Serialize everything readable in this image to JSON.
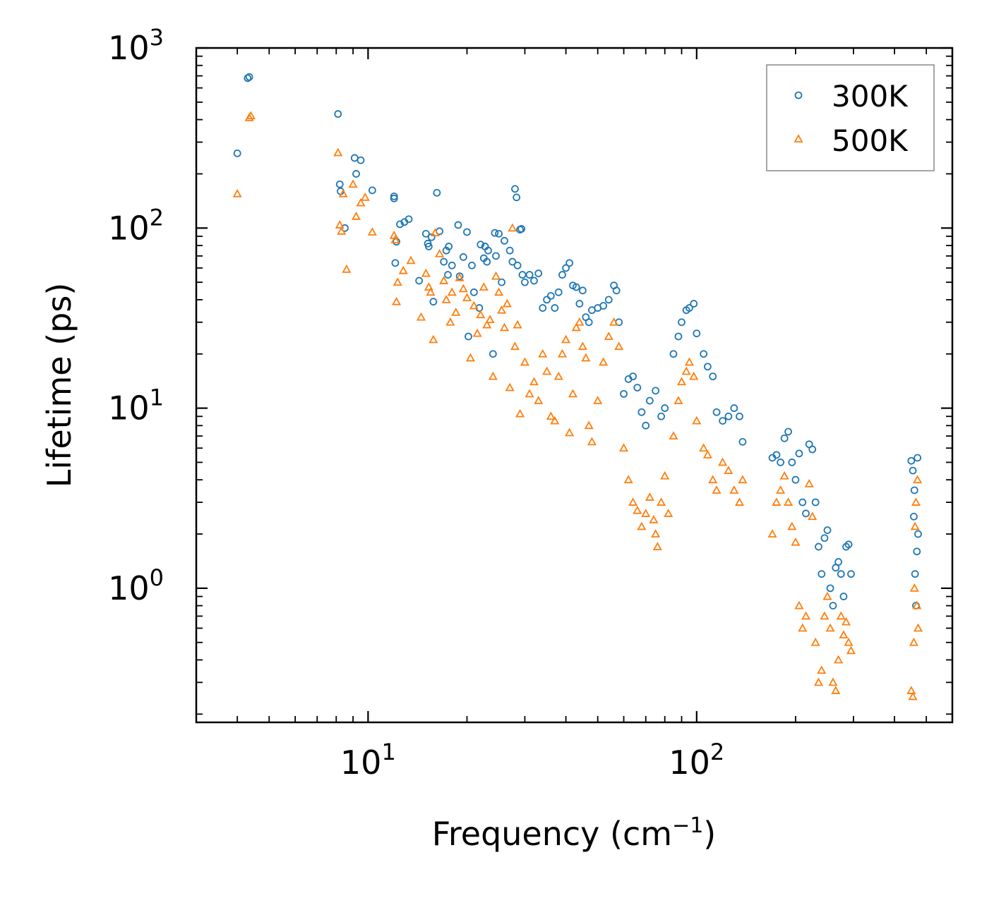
{
  "chart_data": {
    "type": "scatter",
    "title": "",
    "xlabel": "Frequency (cm",
    "xlabel_sup": "−1",
    "xlabel_end": ")",
    "ylabel": "Lifetime (ps)",
    "xscale": "log",
    "yscale": "log",
    "xlim": [
      3.0,
      600.0
    ],
    "ylim": [
      0.18,
      1000
    ],
    "x_ticks": [
      {
        "base": "10",
        "exp": "1",
        "value": 10
      },
      {
        "base": "10",
        "exp": "2",
        "value": 100
      }
    ],
    "y_ticks": [
      {
        "base": "10",
        "exp": "0",
        "value": 1
      },
      {
        "base": "10",
        "exp": "1",
        "value": 10
      },
      {
        "base": "10",
        "exp": "2",
        "value": 100
      },
      {
        "base": "10",
        "exp": "3",
        "value": 1000
      }
    ],
    "legend": {
      "placement": "top-right"
    },
    "series": [
      {
        "name": "300K",
        "marker": "circle",
        "color": "#1f77b4",
        "points": [
          [
            4.0,
            260
          ],
          [
            4.3,
            680
          ],
          [
            4.35,
            690
          ],
          [
            8.1,
            430
          ],
          [
            8.2,
            175
          ],
          [
            8.25,
            160
          ],
          [
            8.5,
            100
          ],
          [
            9.1,
            245
          ],
          [
            9.2,
            200
          ],
          [
            9.5,
            238
          ],
          [
            10.3,
            162
          ],
          [
            12.0,
            150
          ],
          [
            12.0,
            146
          ],
          [
            12.1,
            64
          ],
          [
            12.2,
            84
          ],
          [
            12.5,
            105
          ],
          [
            12.9,
            108
          ],
          [
            13.3,
            112
          ],
          [
            14.3,
            51
          ],
          [
            15.0,
            93
          ],
          [
            15.2,
            82
          ],
          [
            15.3,
            79
          ],
          [
            15.6,
            89
          ],
          [
            15.8,
            39
          ],
          [
            16.2,
            157
          ],
          [
            16.5,
            96
          ],
          [
            17.0,
            65
          ],
          [
            17.3,
            75
          ],
          [
            17.5,
            55
          ],
          [
            17.6,
            79
          ],
          [
            18.0,
            62
          ],
          [
            18.8,
            104
          ],
          [
            19.0,
            54
          ],
          [
            19.5,
            69
          ],
          [
            20.0,
            95
          ],
          [
            20.2,
            25
          ],
          [
            20.7,
            62
          ],
          [
            21.0,
            44
          ],
          [
            21.8,
            36
          ],
          [
            22.0,
            81
          ],
          [
            22.5,
            68
          ],
          [
            22.7,
            79
          ],
          [
            23.0,
            65
          ],
          [
            23.2,
            75
          ],
          [
            24.0,
            20
          ],
          [
            24.3,
            94
          ],
          [
            24.5,
            70
          ],
          [
            25.0,
            93
          ],
          [
            25.5,
            50
          ],
          [
            26.0,
            85
          ],
          [
            27.0,
            75
          ],
          [
            27.5,
            65
          ],
          [
            28.0,
            165
          ],
          [
            28.3,
            148
          ],
          [
            28.5,
            62
          ],
          [
            29.0,
            98
          ],
          [
            29.3,
            99
          ],
          [
            29.5,
            55
          ],
          [
            30.0,
            50
          ],
          [
            31.0,
            55
          ],
          [
            32.0,
            51
          ],
          [
            33.0,
            56
          ],
          [
            34.0,
            36
          ],
          [
            35.0,
            40
          ],
          [
            36.0,
            42
          ],
          [
            37.0,
            36
          ],
          [
            38.0,
            44
          ],
          [
            39.0,
            55
          ],
          [
            40.0,
            60
          ],
          [
            41.0,
            64
          ],
          [
            42.0,
            48
          ],
          [
            43.0,
            47
          ],
          [
            44.0,
            38
          ],
          [
            45.0,
            45
          ],
          [
            46.0,
            32
          ],
          [
            47.0,
            30
          ],
          [
            48.0,
            35
          ],
          [
            50.0,
            36
          ],
          [
            52.0,
            37
          ],
          [
            54.0,
            40
          ],
          [
            56.0,
            48
          ],
          [
            57.0,
            45
          ],
          [
            58.0,
            30
          ],
          [
            60.0,
            12.0
          ],
          [
            62.0,
            14.5
          ],
          [
            64.0,
            15.0
          ],
          [
            66.0,
            13.0
          ],
          [
            68.0,
            9.5
          ],
          [
            70.0,
            8.0
          ],
          [
            72.0,
            11.0
          ],
          [
            75.0,
            12.5
          ],
          [
            78.0,
            9.0
          ],
          [
            80.0,
            10.0
          ],
          [
            85.0,
            20.0
          ],
          [
            88.0,
            25.0
          ],
          [
            90.0,
            30.0
          ],
          [
            93.0,
            35.0
          ],
          [
            95.0,
            36.0
          ],
          [
            98.0,
            38.0
          ],
          [
            100.0,
            26.0
          ],
          [
            105.0,
            20.0
          ],
          [
            108.0,
            17.0
          ],
          [
            112.0,
            15.0
          ],
          [
            115.0,
            9.5
          ],
          [
            120.0,
            8.5
          ],
          [
            125.0,
            9.0
          ],
          [
            130.0,
            10.0
          ],
          [
            135.0,
            9.0
          ],
          [
            138.0,
            6.5
          ],
          [
            170.0,
            5.3
          ],
          [
            175.0,
            5.5
          ],
          [
            180.0,
            5.0
          ],
          [
            185.0,
            6.8
          ],
          [
            190.0,
            7.4
          ],
          [
            195.0,
            5.0
          ],
          [
            200.0,
            4.0
          ],
          [
            205.0,
            5.6
          ],
          [
            210.0,
            3.0
          ],
          [
            215.0,
            2.6
          ],
          [
            220.0,
            6.3
          ],
          [
            225.0,
            5.9
          ],
          [
            230.0,
            3.0
          ],
          [
            235.0,
            1.7
          ],
          [
            240.0,
            1.2
          ],
          [
            245.0,
            1.9
          ],
          [
            250.0,
            2.1
          ],
          [
            255.0,
            1.0
          ],
          [
            260.0,
            0.8
          ],
          [
            265.0,
            1.3
          ],
          [
            270.0,
            1.4
          ],
          [
            275.0,
            1.2
          ],
          [
            280.0,
            0.9
          ],
          [
            285.0,
            1.7
          ],
          [
            290.0,
            1.75
          ],
          [
            295.0,
            1.2
          ],
          [
            450.0,
            5.1
          ],
          [
            455.0,
            4.5
          ],
          [
            458.0,
            2.5
          ],
          [
            460.0,
            3.5
          ],
          [
            462.0,
            1.2
          ],
          [
            465.0,
            0.8
          ],
          [
            468.0,
            1.6
          ],
          [
            470.0,
            5.3
          ],
          [
            472.0,
            2.0
          ]
        ]
      },
      {
        "name": "500K",
        "marker": "triangle",
        "color": "#ff7f0e",
        "points": [
          [
            4.0,
            155
          ],
          [
            4.35,
            410
          ],
          [
            4.4,
            420
          ],
          [
            8.1,
            262
          ],
          [
            8.2,
            104
          ],
          [
            8.3,
            96
          ],
          [
            8.4,
            155
          ],
          [
            8.6,
            59
          ],
          [
            9.0,
            175
          ],
          [
            9.2,
            116
          ],
          [
            9.5,
            138
          ],
          [
            9.8,
            148
          ],
          [
            10.3,
            95
          ],
          [
            12.0,
            91
          ],
          [
            12.1,
            86
          ],
          [
            12.2,
            39
          ],
          [
            12.3,
            50
          ],
          [
            12.8,
            58
          ],
          [
            13.5,
            66
          ],
          [
            14.5,
            32
          ],
          [
            15.0,
            56
          ],
          [
            15.3,
            47
          ],
          [
            15.5,
            44
          ],
          [
            15.8,
            24
          ],
          [
            16.0,
            94
          ],
          [
            16.5,
            72
          ],
          [
            17.0,
            51
          ],
          [
            17.3,
            40
          ],
          [
            17.8,
            30
          ],
          [
            18.0,
            44
          ],
          [
            18.5,
            34
          ],
          [
            19.0,
            53
          ],
          [
            19.5,
            46
          ],
          [
            20.0,
            41
          ],
          [
            20.5,
            19
          ],
          [
            21.0,
            37
          ],
          [
            21.5,
            26
          ],
          [
            22.0,
            33
          ],
          [
            22.5,
            47
          ],
          [
            23.0,
            29
          ],
          [
            23.5,
            31
          ],
          [
            24.0,
            15
          ],
          [
            24.5,
            54
          ],
          [
            25.0,
            44
          ],
          [
            25.5,
            35
          ],
          [
            26.0,
            28
          ],
          [
            26.5,
            38
          ],
          [
            27.0,
            13
          ],
          [
            27.5,
            100
          ],
          [
            28.0,
            22
          ],
          [
            28.5,
            29
          ],
          [
            29.0,
            9.3
          ],
          [
            30.0,
            18
          ],
          [
            31.0,
            12
          ],
          [
            32.0,
            14
          ],
          [
            33.0,
            11
          ],
          [
            34.0,
            20
          ],
          [
            35.0,
            16
          ],
          [
            36.0,
            9
          ],
          [
            37.0,
            8.5
          ],
          [
            38.0,
            15
          ],
          [
            39.0,
            20
          ],
          [
            40.0,
            24
          ],
          [
            41.0,
            7.3
          ],
          [
            42.0,
            12
          ],
          [
            43.0,
            28
          ],
          [
            44.0,
            30
          ],
          [
            45.0,
            22
          ],
          [
            46.0,
            19
          ],
          [
            47.0,
            8.0
          ],
          [
            48.0,
            6.5
          ],
          [
            50.0,
            11
          ],
          [
            52.0,
            18
          ],
          [
            54.0,
            25
          ],
          [
            56.0,
            30
          ],
          [
            58.0,
            22
          ],
          [
            60.0,
            6
          ],
          [
            62.0,
            4.0
          ],
          [
            64.0,
            3.0
          ],
          [
            66.0,
            2.7
          ],
          [
            68.0,
            2.2
          ],
          [
            70.0,
            2.6
          ],
          [
            72.0,
            3.2
          ],
          [
            74.0,
            2.4
          ],
          [
            75.0,
            2.0
          ],
          [
            76.0,
            1.7
          ],
          [
            78.0,
            3.0
          ],
          [
            80.0,
            4.2
          ],
          [
            82.0,
            2.6
          ],
          [
            85.0,
            7.0
          ],
          [
            88.0,
            11.0
          ],
          [
            90.0,
            14.0
          ],
          [
            93.0,
            16.0
          ],
          [
            95.0,
            18.0
          ],
          [
            98.0,
            15.0
          ],
          [
            100.0,
            8.5
          ],
          [
            105.0,
            6.0
          ],
          [
            108.0,
            5.5
          ],
          [
            112.0,
            4.0
          ],
          [
            115.0,
            3.5
          ],
          [
            120.0,
            5.0
          ],
          [
            125.0,
            4.5
          ],
          [
            130.0,
            3.5
          ],
          [
            135.0,
            3.0
          ],
          [
            138.0,
            4.0
          ],
          [
            170.0,
            2.0
          ],
          [
            175.0,
            3.0
          ],
          [
            180.0,
            3.5
          ],
          [
            185.0,
            4.2
          ],
          [
            190.0,
            3.0
          ],
          [
            195.0,
            2.2
          ],
          [
            200.0,
            1.8
          ],
          [
            205.0,
            0.8
          ],
          [
            210.0,
            0.6
          ],
          [
            215.0,
            0.7
          ],
          [
            220.0,
            3.8
          ],
          [
            225.0,
            2.5
          ],
          [
            230.0,
            0.5
          ],
          [
            235.0,
            0.3
          ],
          [
            240.0,
            0.35
          ],
          [
            245.0,
            0.7
          ],
          [
            250.0,
            0.9
          ],
          [
            255.0,
            0.6
          ],
          [
            260.0,
            0.3
          ],
          [
            265.0,
            0.27
          ],
          [
            270.0,
            0.4
          ],
          [
            275.0,
            0.7
          ],
          [
            280.0,
            0.55
          ],
          [
            285.0,
            0.65
          ],
          [
            290.0,
            0.5
          ],
          [
            295.0,
            0.45
          ],
          [
            450.0,
            0.27
          ],
          [
            455.0,
            0.25
          ],
          [
            458.0,
            0.5
          ],
          [
            460.0,
            1.0
          ],
          [
            462.0,
            2.2
          ],
          [
            465.0,
            3.0
          ],
          [
            468.0,
            0.8
          ],
          [
            470.0,
            4.0
          ],
          [
            472.0,
            0.6
          ]
        ]
      }
    ]
  }
}
